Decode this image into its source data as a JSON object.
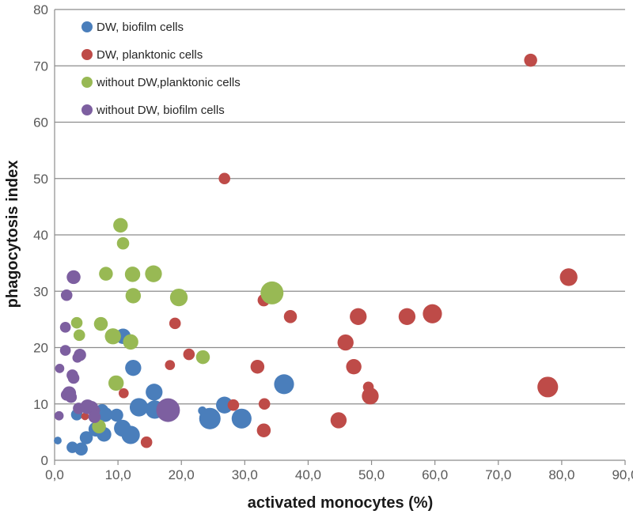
{
  "chart_data": {
    "type": "scatter",
    "title": "",
    "xlabel": "activated monocytes (%)",
    "ylabel": "phagocytosis index",
    "xlim": [
      0,
      90
    ],
    "ylim": [
      0,
      80
    ],
    "xticks": [
      0,
      10,
      20,
      30,
      40,
      50,
      60,
      70,
      80,
      90
    ],
    "xtick_labels": [
      "0,0",
      "10,0",
      "20,0",
      "30,0",
      "40,0",
      "50,0",
      "60,0",
      "70,0",
      "80,0",
      "90,0"
    ],
    "yticks": [
      0,
      10,
      20,
      30,
      40,
      50,
      60,
      70,
      80
    ],
    "ytick_labels": [
      "0",
      "10",
      "20",
      "30",
      "40",
      "50",
      "60",
      "70",
      "80"
    ],
    "grid": "horizontal",
    "legend_position": "top-left",
    "marker_size_note": "bubble size 1-3 relative scale",
    "series": [
      {
        "name": "DW, biofilm cells",
        "color": "#4a7ebb",
        "points": [
          {
            "x": 0.5,
            "y": 3.5,
            "s": 0.5
          },
          {
            "x": 2.8,
            "y": 2.3,
            "s": 1
          },
          {
            "x": 4.2,
            "y": 2.0,
            "s": 1.2
          },
          {
            "x": 5.0,
            "y": 4.0,
            "s": 1.2
          },
          {
            "x": 3.5,
            "y": 8.1,
            "s": 1
          },
          {
            "x": 6.5,
            "y": 5.5,
            "s": 1.4
          },
          {
            "x": 7.5,
            "y": 8.8,
            "s": 1.2
          },
          {
            "x": 7.8,
            "y": 4.6,
            "s": 1.4
          },
          {
            "x": 8.0,
            "y": 8.1,
            "s": 1.4
          },
          {
            "x": 9.8,
            "y": 8.0,
            "s": 1.2
          },
          {
            "x": 10.7,
            "y": 5.7,
            "s": 1.7
          },
          {
            "x": 12.0,
            "y": 4.5,
            "s": 1.9
          },
          {
            "x": 10.8,
            "y": 22.0,
            "s": 1.5
          },
          {
            "x": 12.4,
            "y": 16.4,
            "s": 1.6
          },
          {
            "x": 13.3,
            "y": 9.4,
            "s": 1.9
          },
          {
            "x": 15.7,
            "y": 12.1,
            "s": 1.7
          },
          {
            "x": 15.8,
            "y": 9.0,
            "s": 1.9
          },
          {
            "x": 23.3,
            "y": 8.8,
            "s": 0.6
          },
          {
            "x": 24.5,
            "y": 7.4,
            "s": 2.3
          },
          {
            "x": 26.8,
            "y": 9.8,
            "s": 1.7
          },
          {
            "x": 29.5,
            "y": 7.4,
            "s": 2.1
          },
          {
            "x": 36.2,
            "y": 13.5,
            "s": 2.1
          }
        ]
      },
      {
        "name": "DW, planktonic cells",
        "color": "#be4b48",
        "points": [
          {
            "x": 4.8,
            "y": 7.8,
            "s": 0.5
          },
          {
            "x": 10.9,
            "y": 11.9,
            "s": 0.8
          },
          {
            "x": 14.5,
            "y": 3.2,
            "s": 1
          },
          {
            "x": 18.2,
            "y": 16.9,
            "s": 0.8
          },
          {
            "x": 19.0,
            "y": 24.3,
            "s": 1
          },
          {
            "x": 21.2,
            "y": 18.8,
            "s": 1
          },
          {
            "x": 26.8,
            "y": 50.0,
            "s": 1
          },
          {
            "x": 28.2,
            "y": 9.8,
            "s": 1
          },
          {
            "x": 32.0,
            "y": 16.6,
            "s": 1.3
          },
          {
            "x": 33.0,
            "y": 28.4,
            "s": 1.1
          },
          {
            "x": 33.1,
            "y": 10.0,
            "s": 1
          },
          {
            "x": 33.0,
            "y": 5.3,
            "s": 1.3
          },
          {
            "x": 37.2,
            "y": 25.5,
            "s": 1.2
          },
          {
            "x": 44.8,
            "y": 7.1,
            "s": 1.6
          },
          {
            "x": 45.9,
            "y": 20.9,
            "s": 1.6
          },
          {
            "x": 47.2,
            "y": 16.6,
            "s": 1.5
          },
          {
            "x": 47.9,
            "y": 25.5,
            "s": 1.7
          },
          {
            "x": 49.5,
            "y": 13.0,
            "s": 0.9
          },
          {
            "x": 49.8,
            "y": 11.4,
            "s": 1.7
          },
          {
            "x": 55.6,
            "y": 25.5,
            "s": 1.7
          },
          {
            "x": 59.6,
            "y": 26.0,
            "s": 2.0
          },
          {
            "x": 75.1,
            "y": 71.0,
            "s": 1.2
          },
          {
            "x": 77.8,
            "y": 13.0,
            "s": 2.2
          },
          {
            "x": 81.1,
            "y": 32.5,
            "s": 1.8
          }
        ]
      },
      {
        "name": "without DW,planktonic cells",
        "color": "#98b954",
        "points": [
          {
            "x": 3.5,
            "y": 24.4,
            "s": 1
          },
          {
            "x": 3.7,
            "y": 18.4,
            "s": 0.8
          },
          {
            "x": 3.9,
            "y": 22.2,
            "s": 1
          },
          {
            "x": 7.0,
            "y": 6.0,
            "s": 1.3
          },
          {
            "x": 7.3,
            "y": 24.2,
            "s": 1.3
          },
          {
            "x": 8.1,
            "y": 33.1,
            "s": 1.3
          },
          {
            "x": 9.2,
            "y": 22.0,
            "s": 1.6
          },
          {
            "x": 9.7,
            "y": 13.7,
            "s": 1.5
          },
          {
            "x": 10.4,
            "y": 41.7,
            "s": 1.4
          },
          {
            "x": 10.8,
            "y": 38.5,
            "s": 1.1
          },
          {
            "x": 12.0,
            "y": 21.0,
            "s": 1.5
          },
          {
            "x": 12.3,
            "y": 33.0,
            "s": 1.5
          },
          {
            "x": 12.4,
            "y": 29.2,
            "s": 1.5
          },
          {
            "x": 15.6,
            "y": 33.1,
            "s": 1.7
          },
          {
            "x": 19.6,
            "y": 28.9,
            "s": 1.8
          },
          {
            "x": 23.4,
            "y": 18.3,
            "s": 1.3
          },
          {
            "x": 34.3,
            "y": 29.7,
            "s": 2.5
          }
        ]
      },
      {
        "name": "without DW, biofilm cells",
        "color": "#7d5fa0",
        "points": [
          {
            "x": 0.7,
            "y": 7.9,
            "s": 0.7
          },
          {
            "x": 0.8,
            "y": 16.3,
            "s": 0.7
          },
          {
            "x": 1.7,
            "y": 23.6,
            "s": 0.9
          },
          {
            "x": 1.7,
            "y": 19.5,
            "s": 0.9
          },
          {
            "x": 1.9,
            "y": 29.3,
            "s": 1
          },
          {
            "x": 1.9,
            "y": 11.6,
            "s": 1
          },
          {
            "x": 2.3,
            "y": 11.9,
            "s": 1.3
          },
          {
            "x": 2.6,
            "y": 11.2,
            "s": 1
          },
          {
            "x": 2.8,
            "y": 15.1,
            "s": 1
          },
          {
            "x": 3.0,
            "y": 14.6,
            "s": 1
          },
          {
            "x": 3.0,
            "y": 32.5,
            "s": 1.3
          },
          {
            "x": 3.6,
            "y": 18.2,
            "s": 0.8
          },
          {
            "x": 3.8,
            "y": 9.2,
            "s": 1
          },
          {
            "x": 4.0,
            "y": 18.7,
            "s": 1.1
          },
          {
            "x": 5.2,
            "y": 9.5,
            "s": 1.4
          },
          {
            "x": 5.8,
            "y": 9.3,
            "s": 1.3
          },
          {
            "x": 6.2,
            "y": 8.8,
            "s": 1.1
          },
          {
            "x": 6.3,
            "y": 7.7,
            "s": 1.1
          },
          {
            "x": 17.9,
            "y": 8.9,
            "s": 2.6
          }
        ]
      }
    ]
  }
}
